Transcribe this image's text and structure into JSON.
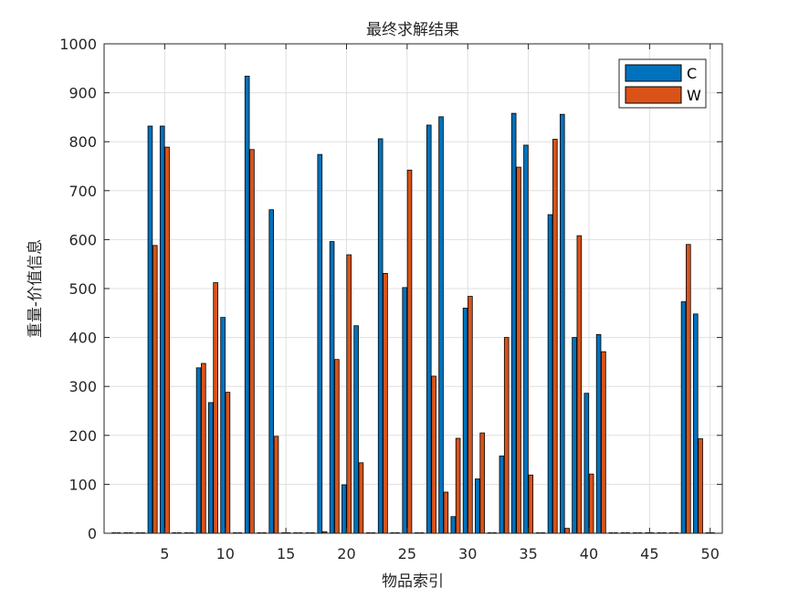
{
  "chart_data": {
    "type": "bar",
    "title": "最终求解结果",
    "xlabel": "物品索引",
    "ylabel": "重量-价值信息",
    "xlim": [
      0,
      51
    ],
    "ylim": [
      0,
      1000
    ],
    "xticks": [
      5,
      10,
      15,
      20,
      25,
      30,
      35,
      40,
      45,
      50
    ],
    "yticks": [
      0,
      100,
      200,
      300,
      400,
      500,
      600,
      700,
      800,
      900,
      1000
    ],
    "grid": true,
    "legend_position": "top-right",
    "x": [
      1,
      2,
      3,
      4,
      5,
      6,
      7,
      8,
      9,
      10,
      11,
      12,
      13,
      14,
      15,
      16,
      17,
      18,
      19,
      20,
      21,
      22,
      23,
      24,
      25,
      26,
      27,
      28,
      29,
      30,
      31,
      32,
      33,
      34,
      35,
      36,
      37,
      38,
      39,
      40,
      41,
      42,
      43,
      44,
      45,
      46,
      47,
      48,
      49,
      50
    ],
    "series": [
      {
        "name": "C",
        "color": "#0072BD",
        "values": [
          0,
          0,
          0,
          832,
          832,
          0,
          0,
          338,
          267,
          441,
          0,
          934,
          0,
          661,
          0,
          0,
          0,
          774,
          596,
          99,
          424,
          0,
          806,
          0,
          502,
          0,
          834,
          851,
          34,
          460,
          111,
          0,
          158,
          858,
          793,
          0,
          651,
          856,
          400,
          286,
          406,
          0,
          0,
          0,
          0,
          0,
          0,
          473,
          448,
          0
        ]
      },
      {
        "name": "W",
        "color": "#D95319",
        "values": [
          0,
          0,
          0,
          588,
          789,
          0,
          0,
          347,
          512,
          288,
          0,
          784,
          0,
          198,
          0,
          0,
          0,
          3,
          355,
          569,
          144,
          0,
          531,
          0,
          742,
          0,
          321,
          84,
          194,
          484,
          205,
          0,
          400,
          748,
          119,
          0,
          805,
          10,
          608,
          121,
          371,
          0,
          0,
          0,
          0,
          0,
          0,
          590,
          193,
          0
        ]
      }
    ]
  }
}
